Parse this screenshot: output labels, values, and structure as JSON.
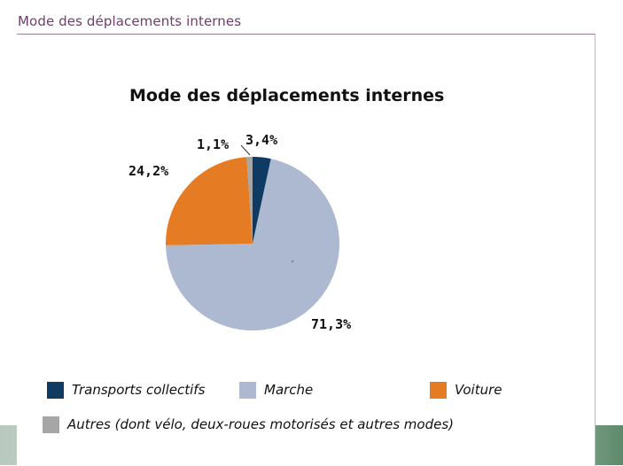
{
  "header": {
    "title": "Mode des déplacements internes"
  },
  "colors": {
    "Transports collectifs": "#0f3a62",
    "Marche": "#adb9d1",
    "Voiture": "#e57b22",
    "Autres": "#a6a6a6",
    "header_title": "#6e3d6b"
  },
  "chart_data": {
    "type": "pie",
    "title": "Mode des déplacements internes",
    "categories": [
      "Transports collectifs",
      "Marche",
      "Voiture",
      "Autres (dont vélo, deux-roues motorisés et autres modes)"
    ],
    "values": [
      3.4,
      71.3,
      24.2,
      1.1
    ],
    "labels": [
      "3,4%",
      "71,3%",
      "24,2%",
      "1,1%"
    ],
    "legend_position": "bottom"
  }
}
